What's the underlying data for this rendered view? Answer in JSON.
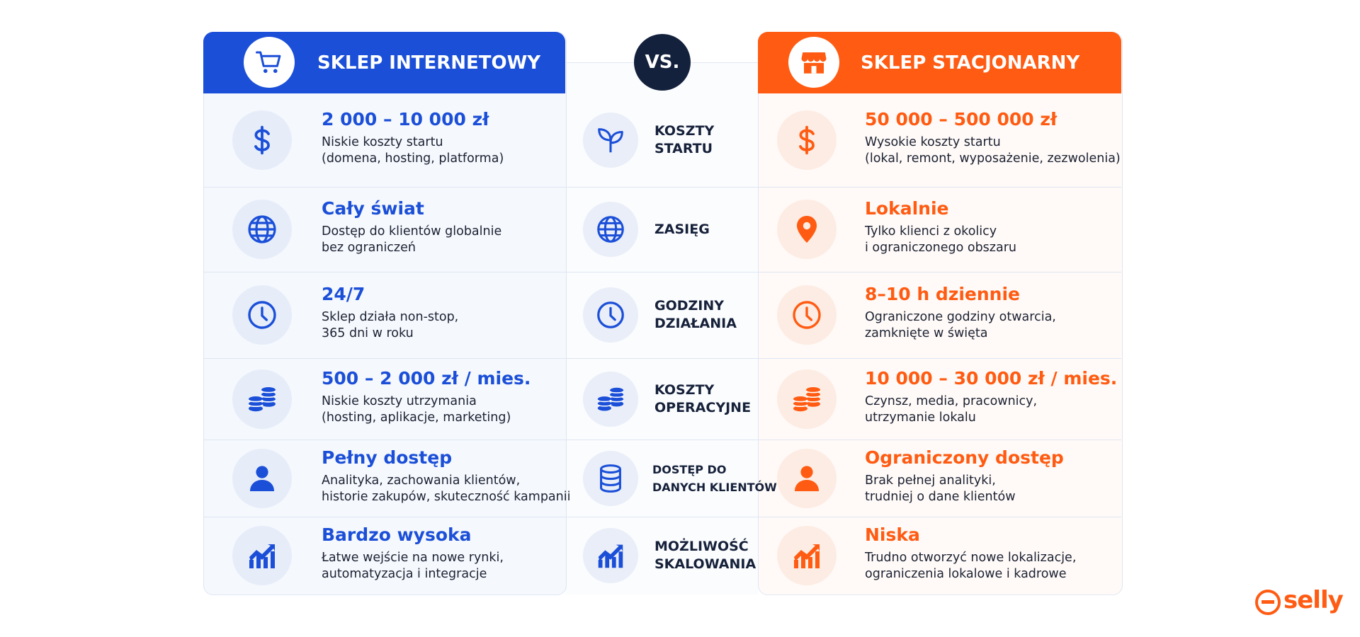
{
  "vs": "VS.",
  "left": {
    "title": "SKLEP INTERNETOWY",
    "rows": [
      {
        "value": "2 000 – 10 000 zł",
        "desc": [
          "Niskie koszty startu",
          "(domena, hosting, platforma)"
        ]
      },
      {
        "value": "Cały świat",
        "desc": [
          "Dostęp do klientów globalnie",
          "bez ograniczeń"
        ]
      },
      {
        "value": "24/7",
        "desc": [
          "Sklep działa non-stop,",
          "365 dni w roku"
        ]
      },
      {
        "value": "500 – 2 000 zł / mies.",
        "desc": [
          "Niskie koszty utrzymania",
          "(hosting, aplikacje, marketing)"
        ]
      },
      {
        "value": "Pełny dostęp",
        "desc": [
          "Analityka, zachowania klientów,",
          "historie zakupów, skuteczność kampanii"
        ]
      },
      {
        "value": "Bardzo wysoka",
        "desc": [
          "Łatwe wejście na nowe rynki,",
          "automatyzacja i integracje"
        ]
      }
    ]
  },
  "middle": {
    "rows": [
      [
        "KOSZTY",
        "STARTU"
      ],
      [
        "ZASIĘG"
      ],
      [
        "GODZINY",
        "DZIAŁANIA"
      ],
      [
        "KOSZTY",
        "OPERACYJNE"
      ],
      [
        "DOSTĘP DO",
        "DANYCH KLIENTÓW"
      ],
      [
        "MOŻLIWOŚĆ",
        "SKALOWANIA"
      ]
    ]
  },
  "right": {
    "title": "SKLEP STACJONARNY",
    "rows": [
      {
        "value": "50 000 – 500 000 zł",
        "desc": [
          "Wysokie koszty startu",
          "(lokal, remont, wyposażenie, zezwolenia)"
        ]
      },
      {
        "value": "Lokalnie",
        "desc": [
          "Tylko klienci z okolicy",
          "i ograniczonego obszaru"
        ]
      },
      {
        "value": "8–10 h dziennie",
        "desc": [
          "Ograniczone godziny otwarcia,",
          "zamknięte w święta"
        ]
      },
      {
        "value": "10 000 – 30 000 zł / mies.",
        "desc": [
          "Czynsz, media, pracownicy,",
          "utrzymanie lokalu"
        ]
      },
      {
        "value": "Ograniczony dostęp",
        "desc": [
          "Brak pełnej analityki,",
          "trudniej o dane klientów"
        ]
      },
      {
        "value": "Niska",
        "desc": [
          "Trudno otworzyć nowe lokalizacje,",
          "ograniczenia lokalowe i kadrowe"
        ]
      }
    ]
  },
  "logo": "selly"
}
